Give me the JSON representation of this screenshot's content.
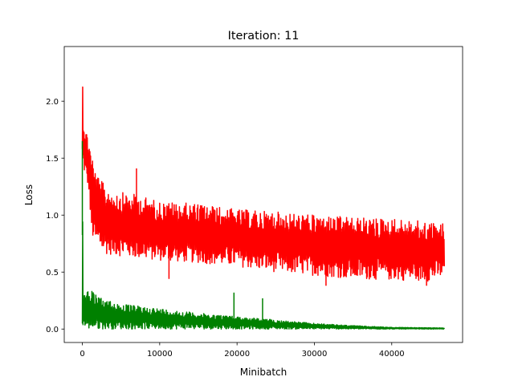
{
  "chart_data": {
    "type": "line",
    "title": "Iteration: 11",
    "xlabel": "Minibatch",
    "ylabel": "Loss",
    "xlim": [
      -2340,
      49160
    ],
    "ylim": [
      -0.118,
      2.48
    ],
    "x_ticks": [
      0,
      10000,
      20000,
      30000,
      40000
    ],
    "x_tick_labels": [
      "0",
      "10000",
      "20000",
      "30000",
      "40000"
    ],
    "y_ticks": [
      0.0,
      0.5,
      1.0,
      1.5,
      2.0
    ],
    "y_tick_labels": [
      "0.0",
      "0.5",
      "1.0",
      "1.5",
      "2.0"
    ],
    "grid": false,
    "legend": "none",
    "series": [
      {
        "color": "#ff0000",
        "envelope": {
          "x": [
            0,
            150,
            500,
            900,
            1100,
            1500,
            2000,
            3000,
            5000,
            7000,
            10000,
            15000,
            20000,
            25000,
            30000,
            35000,
            40000,
            45000,
            46800
          ],
          "upper": [
            2.36,
            1.85,
            1.75,
            1.65,
            1.6,
            1.45,
            1.35,
            1.25,
            1.2,
            1.18,
            1.12,
            1.1,
            1.05,
            1.03,
            1.0,
            0.98,
            0.97,
            0.94,
            0.93
          ],
          "lower": [
            1.35,
            1.4,
            1.3,
            1.2,
            0.85,
            0.75,
            0.7,
            0.66,
            0.64,
            0.62,
            0.6,
            0.58,
            0.55,
            0.5,
            0.47,
            0.44,
            0.43,
            0.42,
            0.46
          ]
        },
        "spikes": [
          {
            "x": 7000,
            "y": 1.41
          },
          {
            "x": 11200,
            "y": 0.44
          },
          {
            "x": 31500,
            "y": 0.38
          },
          {
            "x": 44500,
            "y": 0.38
          }
        ]
      },
      {
        "color": "#008000",
        "envelope": {
          "x": [
            0,
            100,
            400,
            1000,
            2000,
            5000,
            10000,
            15000,
            20000,
            25000,
            30000,
            35000,
            40000,
            46800
          ],
          "upper": [
            1.65,
            0.35,
            0.33,
            0.36,
            0.28,
            0.22,
            0.18,
            0.14,
            0.11,
            0.08,
            0.05,
            0.03,
            0.015,
            0.01
          ],
          "lower": [
            0.0,
            0.0,
            0.0,
            0.0,
            0.0,
            0.0,
            0.0,
            0.0,
            0.0,
            0.0,
            0.0,
            0.0,
            0.0,
            0.0
          ]
        },
        "spikes": [
          {
            "x": 0,
            "y": 1.65
          },
          {
            "x": 19600,
            "y": 0.32
          },
          {
            "x": 23300,
            "y": 0.27
          }
        ]
      }
    ]
  }
}
